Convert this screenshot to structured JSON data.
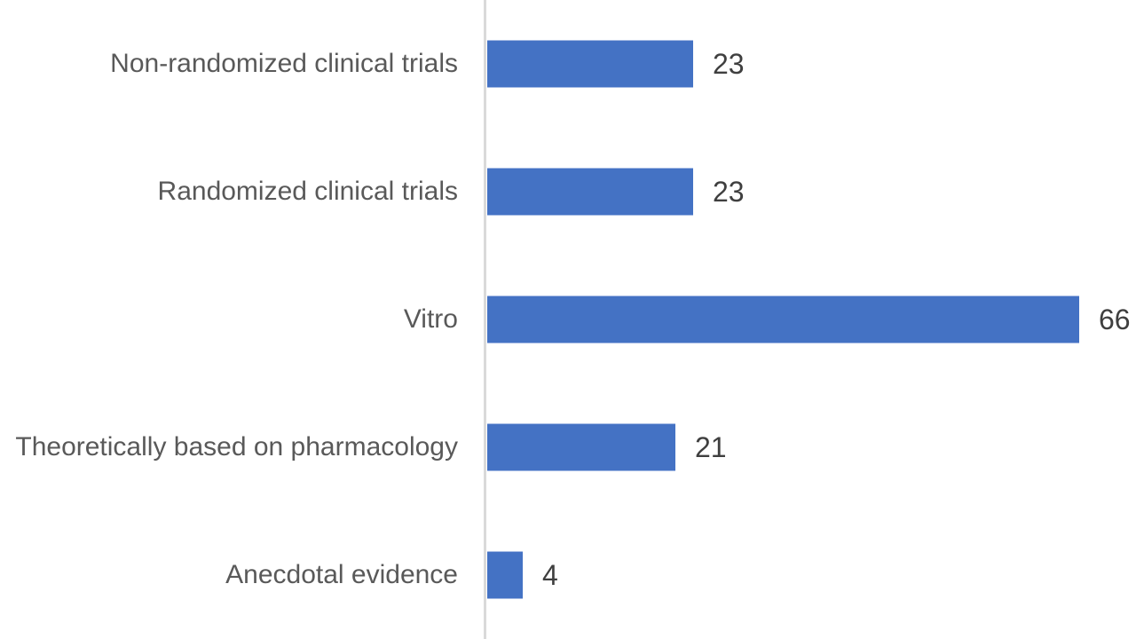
{
  "chart_data": {
    "type": "bar",
    "orientation": "horizontal",
    "title": "",
    "xlabel": "",
    "ylabel": "",
    "categories": [
      "Non-randomized clinical trials",
      "Randomized clinical trials",
      "Vitro",
      "Theoretically based on pharmacology",
      "Anecdotal evidence"
    ],
    "values": [
      23,
      23,
      66,
      21,
      4
    ],
    "data_labels": [
      "23",
      "23",
      "66",
      "21",
      "4"
    ],
    "xlim": [
      0,
      70
    ],
    "grid": false,
    "legend": false,
    "axis_line_visible": true,
    "colors": {
      "bar": "#4472C4",
      "axis_line": "#D9D9D9",
      "category_label": "#595959",
      "value_label": "#3F3F3F",
      "background": "#FFFFFF"
    }
  }
}
